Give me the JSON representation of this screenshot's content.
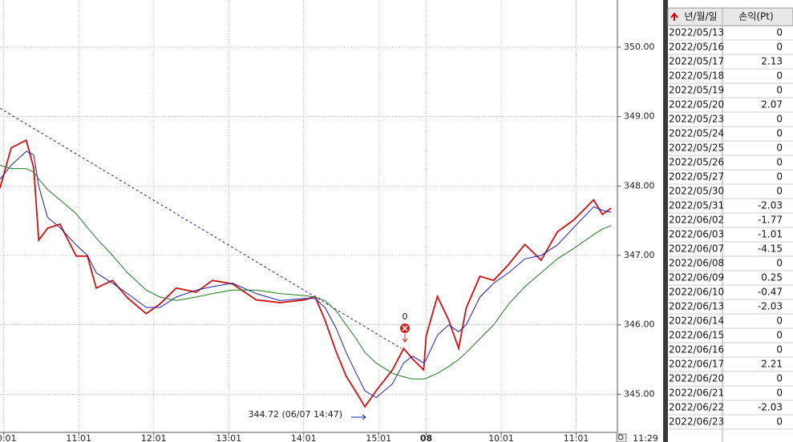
{
  "chart_data": {
    "type": "line",
    "x": [
      -3,
      6,
      18,
      24,
      28,
      35,
      45,
      58,
      67,
      74,
      87,
      99,
      114,
      125,
      138,
      154,
      167,
      183,
      202,
      221,
      241,
      249,
      257,
      266,
      274,
      282,
      289,
      298,
      311,
      320,
      327,
      336,
      338,
      347,
      356,
      364,
      370,
      381,
      392,
      404,
      417,
      430,
      443,
      456,
      472,
      479,
      486
    ],
    "series": [
      {
        "color": "#d01010",
        "values": [
          347.97,
          348.55,
          348.66,
          348.26,
          347.22,
          347.39,
          347.45,
          346.99,
          346.99,
          346.53,
          346.64,
          346.39,
          346.16,
          346.3,
          346.53,
          346.47,
          346.64,
          346.59,
          346.36,
          346.32,
          346.36,
          346.41,
          346.07,
          345.61,
          345.26,
          345.03,
          344.82,
          345.05,
          345.35,
          345.66,
          345.51,
          345.35,
          345.84,
          346.41,
          346.07,
          345.66,
          346.24,
          346.7,
          346.64,
          346.87,
          347.16,
          346.93,
          347.34,
          347.51,
          347.8,
          347.59,
          347.68
        ]
      },
      {
        "color": "#1c1ca8",
        "values": [
          348.1,
          348.3,
          348.5,
          348.45,
          348.0,
          347.55,
          347.4,
          347.15,
          347.0,
          346.75,
          346.6,
          346.45,
          346.25,
          346.25,
          346.4,
          346.5,
          346.55,
          346.6,
          346.45,
          346.35,
          346.38,
          346.38,
          346.25,
          345.95,
          345.6,
          345.3,
          345.05,
          344.95,
          345.15,
          345.45,
          345.55,
          345.45,
          345.5,
          345.85,
          346.0,
          345.9,
          346.0,
          346.4,
          346.6,
          346.75,
          346.95,
          347.0,
          347.15,
          347.4,
          347.7,
          347.65,
          347.62
        ]
      },
      {
        "color": "#1f7a1f",
        "values": [
          348.3,
          348.25,
          348.25,
          348.2,
          348.1,
          347.95,
          347.8,
          347.6,
          347.4,
          347.25,
          347.0,
          346.75,
          346.5,
          346.4,
          346.35,
          346.4,
          346.45,
          346.5,
          346.5,
          346.45,
          346.42,
          346.4,
          346.35,
          346.2,
          346.0,
          345.8,
          345.6,
          345.45,
          345.3,
          345.25,
          345.22,
          345.22,
          345.23,
          345.3,
          345.4,
          345.5,
          345.6,
          345.8,
          346.0,
          346.3,
          346.55,
          346.75,
          346.95,
          347.1,
          347.3,
          347.38,
          347.43
        ]
      }
    ],
    "trendline": {
      "color": "#2020b0",
      "x": [
        -3,
        318
      ],
      "values": [
        349.12,
        345.66
      ]
    },
    "xlim": [
      -3,
      491
    ],
    "ylim": [
      344.45,
      350.68
    ],
    "xticks": [
      {
        "value": 0,
        "label": "10:01"
      },
      {
        "value": 60,
        "label": "11:01"
      },
      {
        "value": 120,
        "label": "12:01"
      },
      {
        "value": 180,
        "label": "13:01"
      },
      {
        "value": 240,
        "label": "14:01"
      },
      {
        "value": 300,
        "label": "15:01"
      },
      {
        "value": 338,
        "label": "08"
      },
      {
        "value": 398,
        "label": "10:01"
      },
      {
        "value": 458,
        "label": "11:01"
      }
    ],
    "yticks": [
      {
        "value": 345,
        "label": "345.00"
      },
      {
        "value": 346,
        "label": "346.00"
      },
      {
        "value": 347,
        "label": "347.00"
      },
      {
        "value": 348,
        "label": "348.00"
      },
      {
        "value": 349,
        "label": "349.00"
      },
      {
        "value": 350,
        "label": "350.00"
      }
    ],
    "grid": true,
    "current_time": "11:29",
    "signal": {
      "label": "0",
      "x": 321,
      "value": 345.95
    },
    "low_label": "344.72 (06/07 14:47)"
  },
  "table": {
    "headers": [
      "년/월/일",
      "손익(Pt)"
    ],
    "rows": [
      [
        "2022/05/13",
        0
      ],
      [
        "2022/05/16",
        0
      ],
      [
        "2022/05/17",
        2.13
      ],
      [
        "2022/05/18",
        0
      ],
      [
        "2022/05/19",
        0
      ],
      [
        "2022/05/20",
        2.07
      ],
      [
        "2022/05/23",
        0
      ],
      [
        "2022/05/24",
        0
      ],
      [
        "2022/05/25",
        0
      ],
      [
        "2022/05/26",
        0
      ],
      [
        "2022/05/27",
        0
      ],
      [
        "2022/05/30",
        0
      ],
      [
        "2022/05/31",
        -2.03
      ],
      [
        "2022/06/02",
        -1.77
      ],
      [
        "2022/06/03",
        -1.01
      ],
      [
        "2022/06/07",
        -4.15
      ],
      [
        "2022/06/08",
        0
      ],
      [
        "2022/06/09",
        0.25
      ],
      [
        "2022/06/10",
        -0.47
      ],
      [
        "2022/06/13",
        -2.03
      ],
      [
        "2022/06/14",
        0
      ],
      [
        "2022/06/15",
        0
      ],
      [
        "2022/06/16",
        0
      ],
      [
        "2022/06/17",
        2.21
      ],
      [
        "2022/06/20",
        0
      ],
      [
        "2022/06/21",
        0
      ],
      [
        "2022/06/22",
        -2.03
      ],
      [
        "2022/06/23",
        0
      ]
    ]
  }
}
